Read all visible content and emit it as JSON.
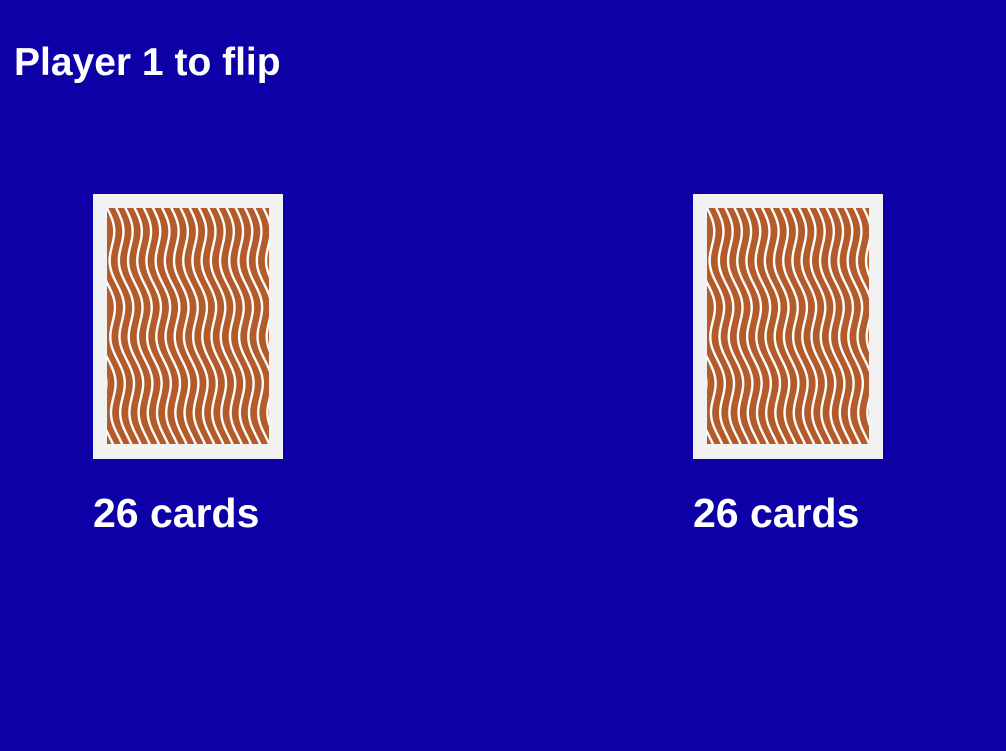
{
  "colors": {
    "table_background": "#0e00a7",
    "text": "#ffffff",
    "card_border": "#f2f2f2",
    "card_pattern_base": "#b35b2a",
    "card_pattern_lines": "#ffffff"
  },
  "status": {
    "text": "Player 1 to flip"
  },
  "players": [
    {
      "deck_icon": "card-back-icon",
      "card_count_label": "26 cards"
    },
    {
      "deck_icon": "card-back-icon",
      "card_count_label": "26 cards"
    }
  ]
}
